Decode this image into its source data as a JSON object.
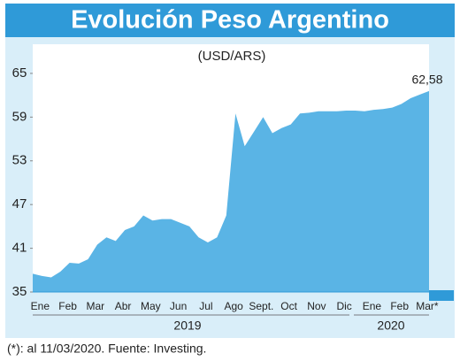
{
  "chart_data": {
    "type": "area",
    "title": "Evolución Peso Argentino",
    "subtitle": "(USD/ARS)",
    "footnote": "(*): al 11/03/2020. Fuente: Investing.",
    "year_labels": [
      "2019",
      "2020"
    ],
    "categories": [
      "Ene",
      null,
      null,
      "Feb",
      null,
      null,
      "Mar",
      null,
      null,
      "Abr",
      null,
      null,
      "May",
      null,
      null,
      "Jun",
      null,
      null,
      "Jul",
      null,
      null,
      "Ago",
      null,
      null,
      "Sept.",
      null,
      null,
      "Oct",
      null,
      null,
      "Nov",
      null,
      null,
      "Dic",
      null,
      null,
      "Ene",
      null,
      null,
      "Feb",
      null,
      null,
      "Mar*",
      null
    ],
    "series": [
      {
        "name": "USD/ARS",
        "color": "#5ab4e5",
        "values": [
          37.5,
          37.2,
          37.0,
          37.8,
          39.0,
          38.9,
          39.5,
          41.5,
          42.5,
          42.0,
          43.5,
          44.0,
          45.5,
          44.8,
          45.0,
          45.0,
          44.5,
          44.0,
          42.5,
          41.8,
          42.5,
          45.5,
          59.5,
          55.0,
          57.0,
          59.0,
          56.8,
          57.5,
          58.0,
          59.5,
          59.6,
          59.8,
          59.8,
          59.8,
          59.9,
          59.9,
          59.8,
          60.0,
          60.1,
          60.3,
          60.8,
          61.6,
          62.1,
          62.58
        ],
        "value_labels": [
          null,
          null,
          null,
          null,
          null,
          null,
          null,
          null,
          null,
          null,
          null,
          null,
          null,
          null,
          null,
          null,
          null,
          null,
          null,
          null,
          null,
          null,
          null,
          null,
          null,
          null,
          null,
          null,
          null,
          null,
          null,
          null,
          null,
          null,
          null,
          null,
          null,
          null,
          null,
          null,
          null,
          null,
          null,
          "62,58"
        ]
      }
    ],
    "ylim": [
      35,
      69
    ],
    "yticks": [
      35,
      41,
      47,
      53,
      59,
      65
    ],
    "grid": false
  }
}
